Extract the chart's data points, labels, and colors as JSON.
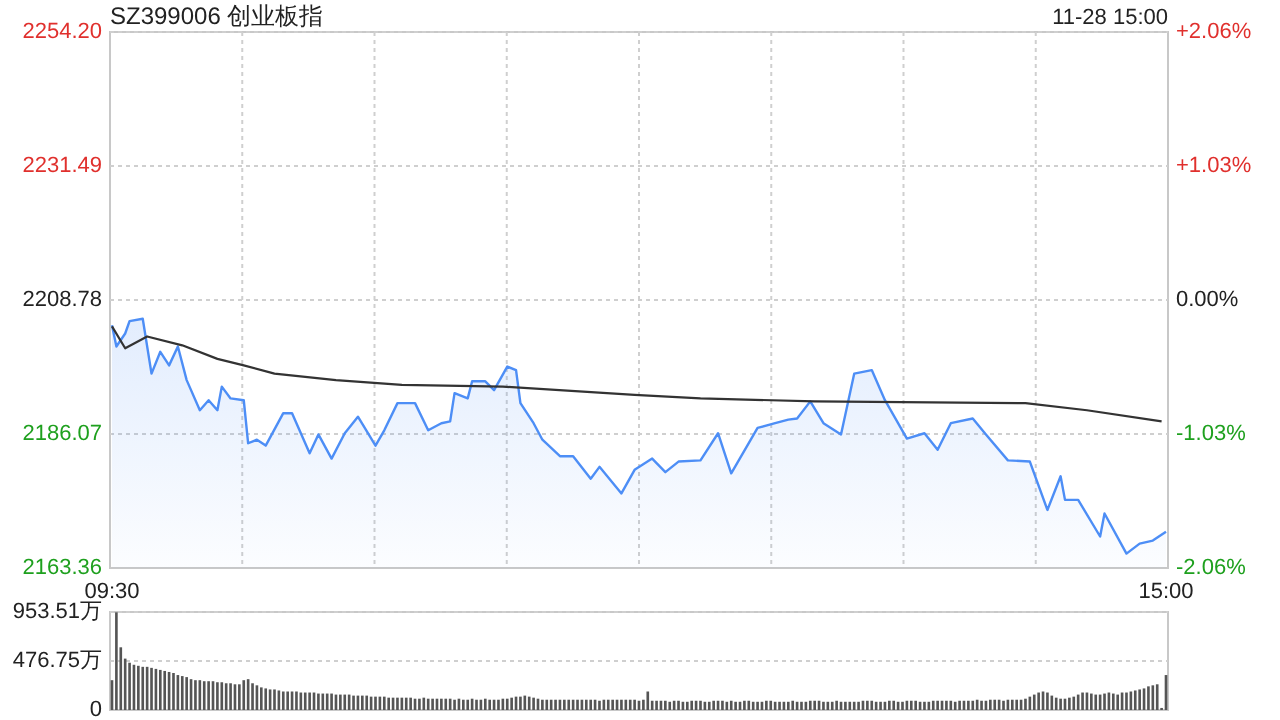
{
  "chart_data": [
    {
      "type": "line",
      "title": "SZ399006 创业板指",
      "annotations": [
        "11-28 15:00"
      ],
      "categories": [
        "09:30",
        null,
        null,
        null,
        null,
        null,
        null,
        null,
        null,
        null,
        null,
        null,
        null,
        null,
        null,
        null,
        null,
        null,
        null,
        null,
        null,
        null,
        null,
        null,
        null,
        null,
        null,
        null,
        null,
        null,
        null,
        null,
        null,
        null,
        null,
        null,
        null,
        null,
        null,
        null,
        null,
        null,
        null,
        null,
        null,
        null,
        null,
        null,
        null,
        null,
        null,
        null,
        null,
        null,
        null,
        null,
        null,
        null,
        null,
        null,
        null,
        null,
        null,
        null,
        null,
        null,
        null,
        null,
        null,
        null,
        null,
        null,
        null,
        null,
        null,
        null,
        null,
        null,
        null,
        null,
        null,
        null,
        null,
        null,
        null,
        null,
        null,
        null,
        null,
        null,
        null,
        null,
        null,
        null,
        null,
        null,
        null,
        null,
        null,
        null,
        null,
        null,
        null,
        null,
        null,
        null,
        null,
        null,
        null,
        null,
        null,
        null,
        null,
        null,
        null,
        null,
        null,
        null,
        null,
        null,
        null,
        null,
        null,
        null,
        null,
        null,
        null,
        null,
        null,
        null,
        null,
        null,
        null,
        null,
        null,
        null,
        null,
        null,
        null,
        null,
        null,
        null,
        null,
        null,
        null,
        null,
        null,
        null,
        null,
        null,
        null,
        null,
        null,
        null,
        null,
        null,
        null,
        null,
        null,
        null,
        null,
        null,
        null,
        null,
        null,
        null,
        null,
        null,
        null,
        null,
        null,
        null,
        null,
        null,
        null,
        null,
        null,
        null,
        null,
        null,
        null,
        null,
        null,
        null,
        null,
        null,
        null,
        null,
        null,
        null,
        null,
        null,
        null,
        null,
        null,
        null,
        null,
        null,
        null,
        null,
        null,
        null,
        null,
        null,
        null,
        null,
        null,
        null,
        null,
        null,
        null,
        null,
        null,
        null,
        null,
        null,
        null,
        null,
        null,
        null,
        null,
        null,
        null,
        null,
        null,
        null,
        null,
        null,
        null,
        null,
        null,
        null,
        null,
        null,
        null,
        null,
        null,
        null,
        null,
        null,
        "15:00"
      ],
      "ylim": [
        2163.36,
        2254.2
      ],
      "yticks": [
        {
          "value": 2163.36,
          "label": "2163.36"
        },
        {
          "value": 2186.07,
          "label": "2186.07"
        },
        {
          "value": 2208.78,
          "label": "2208.78"
        },
        {
          "value": 2231.49,
          "label": "2231.49"
        },
        {
          "value": 2254.2,
          "label": "2254.20"
        }
      ],
      "y2lim": [
        -2.06,
        2.06
      ],
      "y2ticks": [
        {
          "value": -2.06,
          "label": "-2.06%"
        },
        {
          "value": -1.03,
          "label": "-1.03%"
        },
        {
          "value": 0,
          "label": "0.00%"
        },
        {
          "value": 1.03,
          "label": "+1.03%"
        },
        {
          "value": 2.06,
          "label": "+2.06%"
        }
      ],
      "grid": true,
      "series": [
        {
          "type": "area",
          "color": "#4d8ef6",
          "values": [
            2204.5,
            2200.9,
            null,
            2203.1,
            2205.2,
            null,
            null,
            2205.6,
            null,
            2196.3,
            null,
            2200.0,
            null,
            2197.7,
            null,
            2200.9,
            null,
            2195.2,
            null,
            null,
            2190.1,
            null,
            2191.8,
            null,
            2190.1,
            2194.1,
            null,
            2192.1,
            null,
            null,
            2191.8,
            2184.5,
            null,
            2185.1,
            null,
            2184.1,
            null,
            null,
            null,
            2189.6,
            null,
            2189.6,
            null,
            null,
            null,
            2182.8,
            null,
            2186.0,
            null,
            null,
            2181.9,
            null,
            null,
            2186.2,
            null,
            null,
            2189.0,
            null,
            null,
            null,
            2184.1,
            null,
            2186.7,
            null,
            null,
            2191.3,
            null,
            null,
            null,
            2191.3,
            null,
            null,
            2186.7,
            null,
            null,
            2187.9,
            null,
            2188.2,
            2193.0,
            null,
            null,
            2192.1,
            2195.0,
            null,
            null,
            2195.0,
            null,
            2193.5,
            null,
            null,
            2197.5,
            null,
            2196.9,
            2191.3,
            null,
            null,
            2187.9,
            null,
            2185.1,
            null,
            null,
            null,
            2182.3,
            null,
            null,
            2182.3,
            null,
            null,
            null,
            2178.5,
            null,
            2180.5,
            null,
            null,
            null,
            null,
            2176.0,
            null,
            null,
            2180.0,
            null,
            null,
            null,
            2181.9,
            null,
            null,
            2179.6,
            null,
            null,
            2181.4,
            null,
            null,
            null,
            null,
            2181.6,
            null,
            null,
            null,
            2186.2,
            null,
            null,
            2179.4,
            null,
            null,
            null,
            null,
            null,
            2187.1,
            null,
            null,
            null,
            2187.9,
            null,
            null,
            2188.5,
            null,
            2188.7,
            null,
            null,
            2191.6,
            null,
            null,
            2187.9,
            null,
            null,
            null,
            2186.0,
            null,
            null,
            2196.3,
            null,
            null,
            null,
            2196.9,
            null,
            null,
            2191.8,
            null,
            null,
            null,
            null,
            2185.3,
            null,
            null,
            null,
            2186.2,
            null,
            null,
            2183.4,
            null,
            null,
            2187.9,
            null,
            null,
            null,
            null,
            2188.7,
            null,
            null,
            2186.0,
            null,
            null,
            null,
            null,
            2181.6,
            null,
            null,
            null,
            null,
            2181.4,
            null,
            null,
            null,
            2173.2,
            null,
            null,
            2178.9,
            2174.9,
            null,
            null,
            2174.9,
            null,
            null,
            null,
            null,
            2168.7,
            2172.6,
            null,
            null,
            null,
            null,
            2165.8,
            null,
            null,
            2167.5,
            null,
            null,
            2168.0,
            null,
            null,
            2169.5
          ]
        },
        {
          "type": "line",
          "color": "#333333",
          "values": [
            2204.3,
            null,
            null,
            2200.6,
            null,
            null,
            null,
            null,
            2202.6,
            null,
            null,
            null,
            null,
            null,
            null,
            null,
            2201.1,
            null,
            null,
            null,
            null,
            null,
            null,
            null,
            2198.8,
            null,
            null,
            null,
            null,
            null,
            2197.7,
            null,
            null,
            null,
            null,
            null,
            null,
            2196.3,
            null,
            null,
            null,
            null,
            null,
            null,
            null,
            null,
            null,
            null,
            null,
            null,
            null,
            2195.2,
            null,
            null,
            null,
            null,
            null,
            null,
            null,
            null,
            null,
            null,
            null,
            null,
            null,
            null,
            2194.4,
            null,
            null,
            null,
            null,
            null,
            null,
            null,
            null,
            null,
            null,
            null,
            null,
            null,
            null,
            null,
            null,
            null,
            null,
            null,
            null,
            null,
            null,
            2194.1,
            null,
            null,
            null,
            null,
            null,
            null,
            null,
            null,
            null,
            null,
            null,
            null,
            null,
            null,
            null,
            null,
            null,
            null,
            null,
            null,
            null,
            null,
            null,
            null,
            null,
            null,
            null,
            null,
            null,
            2192.7,
            null,
            null,
            null,
            null,
            null,
            null,
            null,
            null,
            null,
            null,
            null,
            null,
            null,
            null,
            2192.1,
            null,
            null,
            null,
            null,
            null,
            null,
            null,
            null,
            null,
            null,
            null,
            null,
            null,
            null,
            null,
            null,
            null,
            null,
            null,
            null,
            null,
            null,
            null,
            null,
            null,
            2191.6,
            null,
            null,
            null,
            null,
            null,
            null,
            null,
            null,
            null,
            null,
            null,
            null,
            null,
            null,
            null,
            null,
            null,
            null,
            null,
            null,
            null,
            null,
            null,
            null,
            null,
            null,
            null,
            null,
            null,
            null,
            null,
            null,
            null,
            null,
            null,
            null,
            null,
            null,
            null,
            null,
            null,
            null,
            null,
            null,
            null,
            null,
            null,
            2191.3,
            null,
            null,
            null,
            null,
            null,
            null,
            null,
            null,
            null,
            null,
            null,
            null,
            null,
            2190.1,
            null,
            null,
            null,
            null,
            null,
            null,
            null,
            null,
            null,
            null,
            null,
            null,
            null,
            null,
            null,
            null,
            2188.2,
            null
          ]
        }
      ]
    },
    {
      "type": "bar",
      "tick_labels": "y",
      "grid": "y",
      "categories": [
        null,
        null,
        null,
        null,
        null,
        null,
        null,
        null,
        null,
        null,
        null,
        null,
        null,
        null,
        null,
        null,
        null,
        null,
        null,
        null,
        null,
        null,
        null,
        null,
        null,
        null,
        null,
        null,
        null,
        null,
        null,
        null,
        null,
        null,
        null,
        null,
        null,
        null,
        null,
        null,
        null,
        null,
        null,
        null,
        null,
        null,
        null,
        null,
        null,
        null,
        null,
        null,
        null,
        null,
        null,
        null,
        null,
        null,
        null,
        null,
        null,
        null,
        null,
        null,
        null,
        null,
        null,
        null,
        null,
        null,
        null,
        null,
        null,
        null,
        null,
        null,
        null,
        null,
        null,
        null,
        null,
        null,
        null,
        null,
        null,
        null,
        null,
        null,
        null,
        null,
        null,
        null,
        null,
        null,
        null,
        null,
        null,
        null,
        null,
        null,
        null,
        null,
        null,
        null,
        null,
        null,
        null,
        null,
        null,
        null,
        null,
        null,
        null,
        null,
        null,
        null,
        null,
        null,
        null,
        null,
        null,
        null,
        null,
        null,
        null,
        null,
        null,
        null,
        null,
        null,
        null,
        null,
        null,
        null,
        null,
        null,
        null,
        null,
        null,
        null,
        null,
        null,
        null,
        null,
        null,
        null,
        null,
        null,
        null,
        null,
        null,
        null,
        null,
        null,
        null,
        null,
        null,
        null,
        null,
        null,
        null,
        null,
        null,
        null,
        null,
        null,
        null,
        null,
        null,
        null,
        null,
        null,
        null,
        null,
        null,
        null,
        null,
        null,
        null,
        null,
        null,
        null,
        null,
        null,
        null,
        null,
        null,
        null,
        null,
        null,
        null,
        null,
        null,
        null,
        null,
        null,
        null,
        null,
        null,
        null,
        null,
        null,
        null,
        null,
        null,
        null,
        null,
        null,
        null,
        null,
        null,
        null,
        null,
        null,
        null,
        null,
        null,
        null,
        null,
        null,
        null,
        null,
        null,
        null,
        null,
        null,
        null,
        null,
        null,
        null,
        null,
        null,
        null,
        null,
        null,
        null,
        null,
        null,
        null,
        null,
        null
      ],
      "ylim": [
        0,
        953.51
      ],
      "yticks": [
        0,
        {
          "value": 476.75,
          "label": "476.75万"
        },
        {
          "value": 953.51,
          "label": "953.51万"
        }
      ],
      "series": [
        {
          "color": "#555555",
          "values": [
            290,
            950,
            610,
            500,
            460,
            440,
            430,
            420,
            420,
            410,
            400,
            390,
            380,
            370,
            360,
            340,
            330,
            320,
            300,
            290,
            290,
            280,
            280,
            280,
            270,
            270,
            260,
            260,
            250,
            250,
            290,
            300,
            260,
            240,
            220,
            210,
            200,
            200,
            190,
            180,
            180,
            180,
            180,
            170,
            170,
            170,
            170,
            160,
            160,
            160,
            160,
            150,
            150,
            150,
            150,
            140,
            140,
            140,
            140,
            130,
            130,
            130,
            130,
            120,
            120,
            120,
            120,
            120,
            120,
            110,
            110,
            120,
            110,
            110,
            110,
            110,
            110,
            110,
            100,
            110,
            100,
            100,
            110,
            100,
            100,
            110,
            100,
            100,
            100,
            110,
            110,
            120,
            130,
            130,
            140,
            130,
            120,
            110,
            100,
            100,
            100,
            100,
            100,
            100,
            100,
            100,
            100,
            100,
            100,
            100,
            100,
            90,
            100,
            100,
            100,
            100,
            100,
            100,
            100,
            100,
            90,
            100,
            180,
            90,
            90,
            90,
            90,
            80,
            90,
            90,
            80,
            80,
            90,
            90,
            90,
            80,
            80,
            90,
            90,
            90,
            80,
            90,
            80,
            80,
            90,
            90,
            80,
            80,
            80,
            90,
            90,
            80,
            80,
            80,
            80,
            90,
            80,
            80,
            80,
            90,
            90,
            90,
            80,
            80,
            80,
            90,
            80,
            80,
            80,
            80,
            80,
            90,
            90,
            90,
            80,
            80,
            80,
            90,
            90,
            80,
            80,
            90,
            90,
            90,
            80,
            80,
            80,
            90,
            90,
            90,
            90,
            90,
            80,
            90,
            90,
            90,
            90,
            100,
            90,
            90,
            100,
            100,
            100,
            90,
            100,
            100,
            100,
            100,
            110,
            130,
            150,
            170,
            180,
            170,
            140,
            120,
            110,
            110,
            120,
            130,
            150,
            170,
            170,
            160,
            150,
            150,
            160,
            170,
            160,
            150,
            170,
            170,
            180,
            190,
            200,
            210,
            230,
            240,
            250,
            20,
            340
          ]
        }
      ]
    }
  ]
}
